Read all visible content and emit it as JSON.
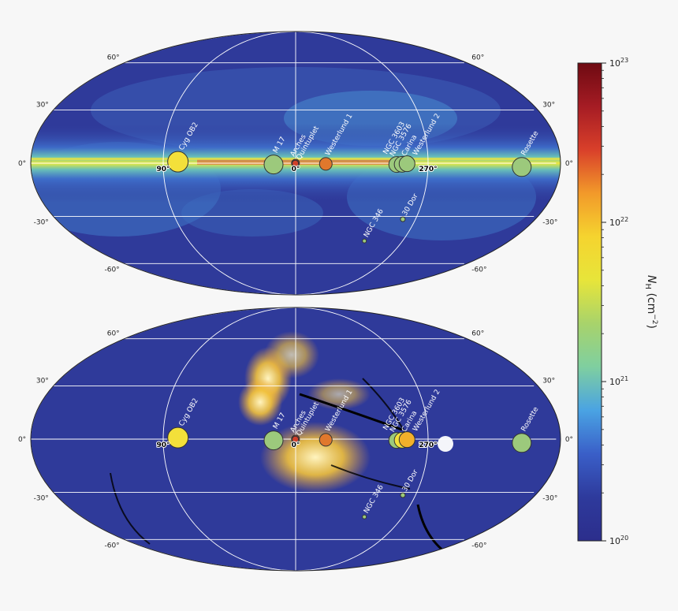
{
  "chart_data": [
    {
      "type": "scatter",
      "panel": "top",
      "projection": "Mollweide (galactic, l=0 at center, l increasing to the left)",
      "lat_tick_labels": [
        "60°",
        "30°",
        "0°",
        "-30°",
        "-60°"
      ],
      "lon_tick_labels": [
        "90°",
        "0°",
        "270°"
      ],
      "sources": [
        {
          "name": "Cyg OB2",
          "l": 80,
          "b": 0.8,
          "color": "#f3e03a"
        },
        {
          "name": "M 17",
          "l": 15,
          "b": -0.7,
          "color": "#9cc97c"
        },
        {
          "name": "Arches",
          "l": 0.1,
          "b": 0.0,
          "color": "#d2402a"
        },
        {
          "name": "Quintuplet",
          "l": 0.2,
          "b": -0.1,
          "color": "#d2402a"
        },
        {
          "name": "Westerlund 1",
          "l": 339.5,
          "b": -0.4,
          "color": "#e0782c"
        },
        {
          "name": "NGC 3603",
          "l": 291.6,
          "b": -0.5,
          "color": "#9cc97c"
        },
        {
          "name": "NGC 3576",
          "l": 291.3,
          "b": -0.7,
          "color": "#9cc97c"
        },
        {
          "name": "Carina",
          "l": 287.6,
          "b": -0.6,
          "color": "#9cc97c"
        },
        {
          "name": "Westerlund 2",
          "l": 284.3,
          "b": -0.3,
          "color": "#9cc97c"
        },
        {
          "name": "Rosette",
          "l": 206.3,
          "b": -2.1,
          "color": "#9cc97c"
        },
        {
          "name": "NGC 346",
          "l": 302.1,
          "b": -44.9,
          "color": "#9cc97c"
        },
        {
          "name": "30 Dor",
          "l": 279.5,
          "b": -31.7,
          "color": "#9cc97c"
        }
      ]
    },
    {
      "type": "scatter",
      "panel": "bottom",
      "projection": "Mollweide (galactic)",
      "lat_tick_labels": [
        "60°",
        "30°",
        "0°",
        "-30°",
        "-60°"
      ],
      "lon_tick_labels": [
        "90°",
        "0°",
        "270°"
      ],
      "sources": [
        {
          "name": "Cyg OB2",
          "l": 80,
          "b": 0.8,
          "color": "#f3e03a"
        },
        {
          "name": "M 17",
          "l": 15,
          "b": -0.7,
          "color": "#9cc97c"
        },
        {
          "name": "Arches",
          "l": 0.1,
          "b": 0.0,
          "color": "#d2402a"
        },
        {
          "name": "Quintuplet",
          "l": 0.2,
          "b": -0.1,
          "color": "#d2402a"
        },
        {
          "name": "Westerlund 1",
          "l": 339.5,
          "b": -0.4,
          "color": "#e0782c"
        },
        {
          "name": "NGC 3603",
          "l": 291.6,
          "b": -0.5,
          "color": "#f3e03a"
        },
        {
          "name": "NGC 3576",
          "l": 291.3,
          "b": -0.7,
          "color": "#9cc97c"
        },
        {
          "name": "Carina",
          "l": 287.6,
          "b": -0.6,
          "color": "#f3e03a"
        },
        {
          "name": "Westerlund 2",
          "l": 284.3,
          "b": -0.3,
          "color": "#f3b02a"
        },
        {
          "name": "Rosette",
          "l": 206.3,
          "b": -2.1,
          "color": "#9cc97c"
        },
        {
          "name": "NGC 346",
          "l": 302.1,
          "b": -44.9,
          "color": "#9cc97c"
        },
        {
          "name": "30 Dor",
          "l": 279.5,
          "b": -31.7,
          "color": "#9cc97c"
        }
      ]
    }
  ],
  "colorbar": {
    "label": "N_H (cm^-2)",
    "label_main": "N",
    "label_sub": "H",
    "label_units": " (cm",
    "label_exp": "−2",
    "label_close": ")",
    "scale": "log",
    "range": [
      1e+20,
      1e+23
    ],
    "ticks": [
      {
        "base": "10",
        "exp": "20",
        "value": 1e+20
      },
      {
        "base": "10",
        "exp": "21",
        "value": 1e+21
      },
      {
        "base": "10",
        "exp": "22",
        "value": 1e+22
      },
      {
        "base": "10",
        "exp": "23",
        "value": 1e+23
      }
    ],
    "stops": [
      "#2c2e8c",
      "#2e3a9c",
      "#3a5fc8",
      "#4aa3e3",
      "#7fcfa0",
      "#a8d36b",
      "#e7e53a",
      "#f5d42f",
      "#f29a2a",
      "#d9402a",
      "#a61c24",
      "#6e0a12"
    ]
  },
  "colors": {
    "map_bg": "#2f3a9a",
    "plane_green": "#8fd08f",
    "plane_yellow": "#f2e53c"
  }
}
